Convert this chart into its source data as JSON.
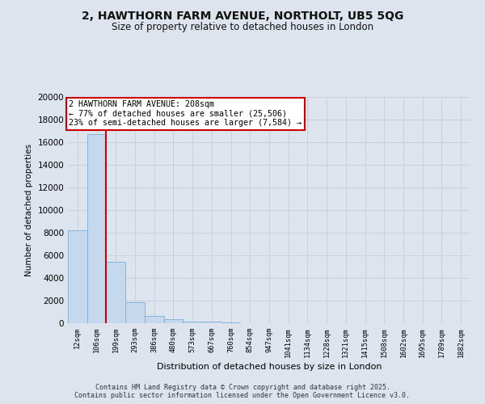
{
  "title_line1": "2, HAWTHORN FARM AVENUE, NORTHOLT, UB5 5QG",
  "title_line2": "Size of property relative to detached houses in London",
  "xlabel": "Distribution of detached houses by size in London",
  "ylabel": "Number of detached properties",
  "categories": [
    "12sqm",
    "106sqm",
    "199sqm",
    "293sqm",
    "386sqm",
    "480sqm",
    "573sqm",
    "667sqm",
    "760sqm",
    "854sqm",
    "947sqm",
    "1041sqm",
    "1134sqm",
    "1228sqm",
    "1321sqm",
    "1415sqm",
    "1508sqm",
    "1602sqm",
    "1695sqm",
    "1789sqm",
    "1882sqm"
  ],
  "values": [
    8200,
    16700,
    5400,
    1850,
    650,
    340,
    175,
    120,
    80,
    0,
    0,
    0,
    0,
    0,
    0,
    0,
    0,
    0,
    0,
    0,
    0
  ],
  "bar_color": "#c5d8ed",
  "bar_edge_color": "#7bafd4",
  "annotation_text": "2 HAWTHORN FARM AVENUE: 208sqm\n← 77% of detached houses are smaller (25,506)\n23% of semi-detached houses are larger (7,584) →",
  "annotation_box_facecolor": "#ffffff",
  "annotation_box_edgecolor": "#cc0000",
  "vline_color": "#cc0000",
  "vline_x_idx": 2,
  "ylim_max": 20000,
  "yticks": [
    0,
    2000,
    4000,
    6000,
    8000,
    10000,
    12000,
    14000,
    16000,
    18000,
    20000
  ],
  "grid_color": "#c8d0dc",
  "background_color": "#dde4ee",
  "footer_line1": "Contains HM Land Registry data © Crown copyright and database right 2025.",
  "footer_line2": "Contains public sector information licensed under the Open Government Licence v3.0."
}
